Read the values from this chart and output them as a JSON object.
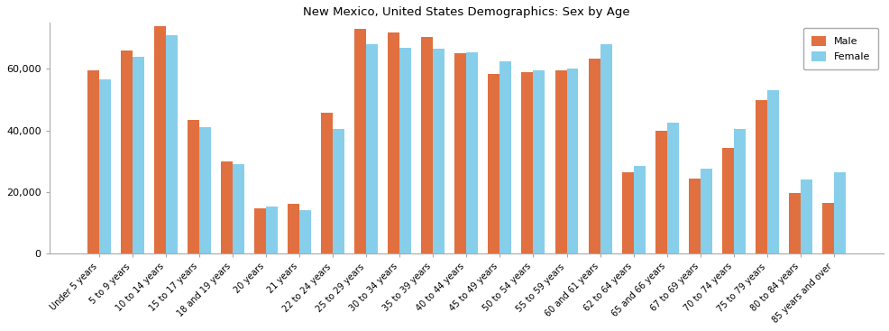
{
  "title": "New Mexico, United States Demographics: Sex by Age",
  "categories": [
    "Under 5 years",
    "5 to 9 years",
    "10 to 14 years",
    "15 to 17 years",
    "18 and 19 years",
    "20 years",
    "21 years",
    "22 to 24 years",
    "25 to 29 years",
    "30 to 34 years",
    "35 to 39 years",
    "40 to 44 years",
    "45 to 49 years",
    "50 to 54 years",
    "55 to 59 years",
    "60 and 61 years",
    "62 to 64 years",
    "65 and 66 years",
    "67 to 69 years",
    "70 to 74 years",
    "75 to 79 years",
    "80 to 84 years",
    "85 years and over"
  ],
  "male": [
    59700,
    66000,
    74000,
    43500,
    30000,
    14800,
    16200,
    45800,
    73000,
    72000,
    70500,
    65000,
    58500,
    59000,
    59500,
    63500,
    26500,
    40000,
    24500,
    34500,
    50000,
    19700,
    16500
  ],
  "female": [
    56500,
    64000,
    71000,
    41200,
    29000,
    15200,
    14200,
    40500,
    68000,
    67000,
    66500,
    65500,
    62500,
    59500,
    60000,
    68000,
    28500,
    42500,
    27500,
    40500,
    53000,
    24000,
    26500
  ],
  "male_color": "#E07040",
  "female_color": "#87CEEB",
  "ylim": [
    0,
    75000
  ],
  "yticks": [
    0,
    20000,
    40000,
    60000
  ],
  "bar_width": 0.35,
  "figsize": [
    9.87,
    3.67
  ],
  "dpi": 100
}
